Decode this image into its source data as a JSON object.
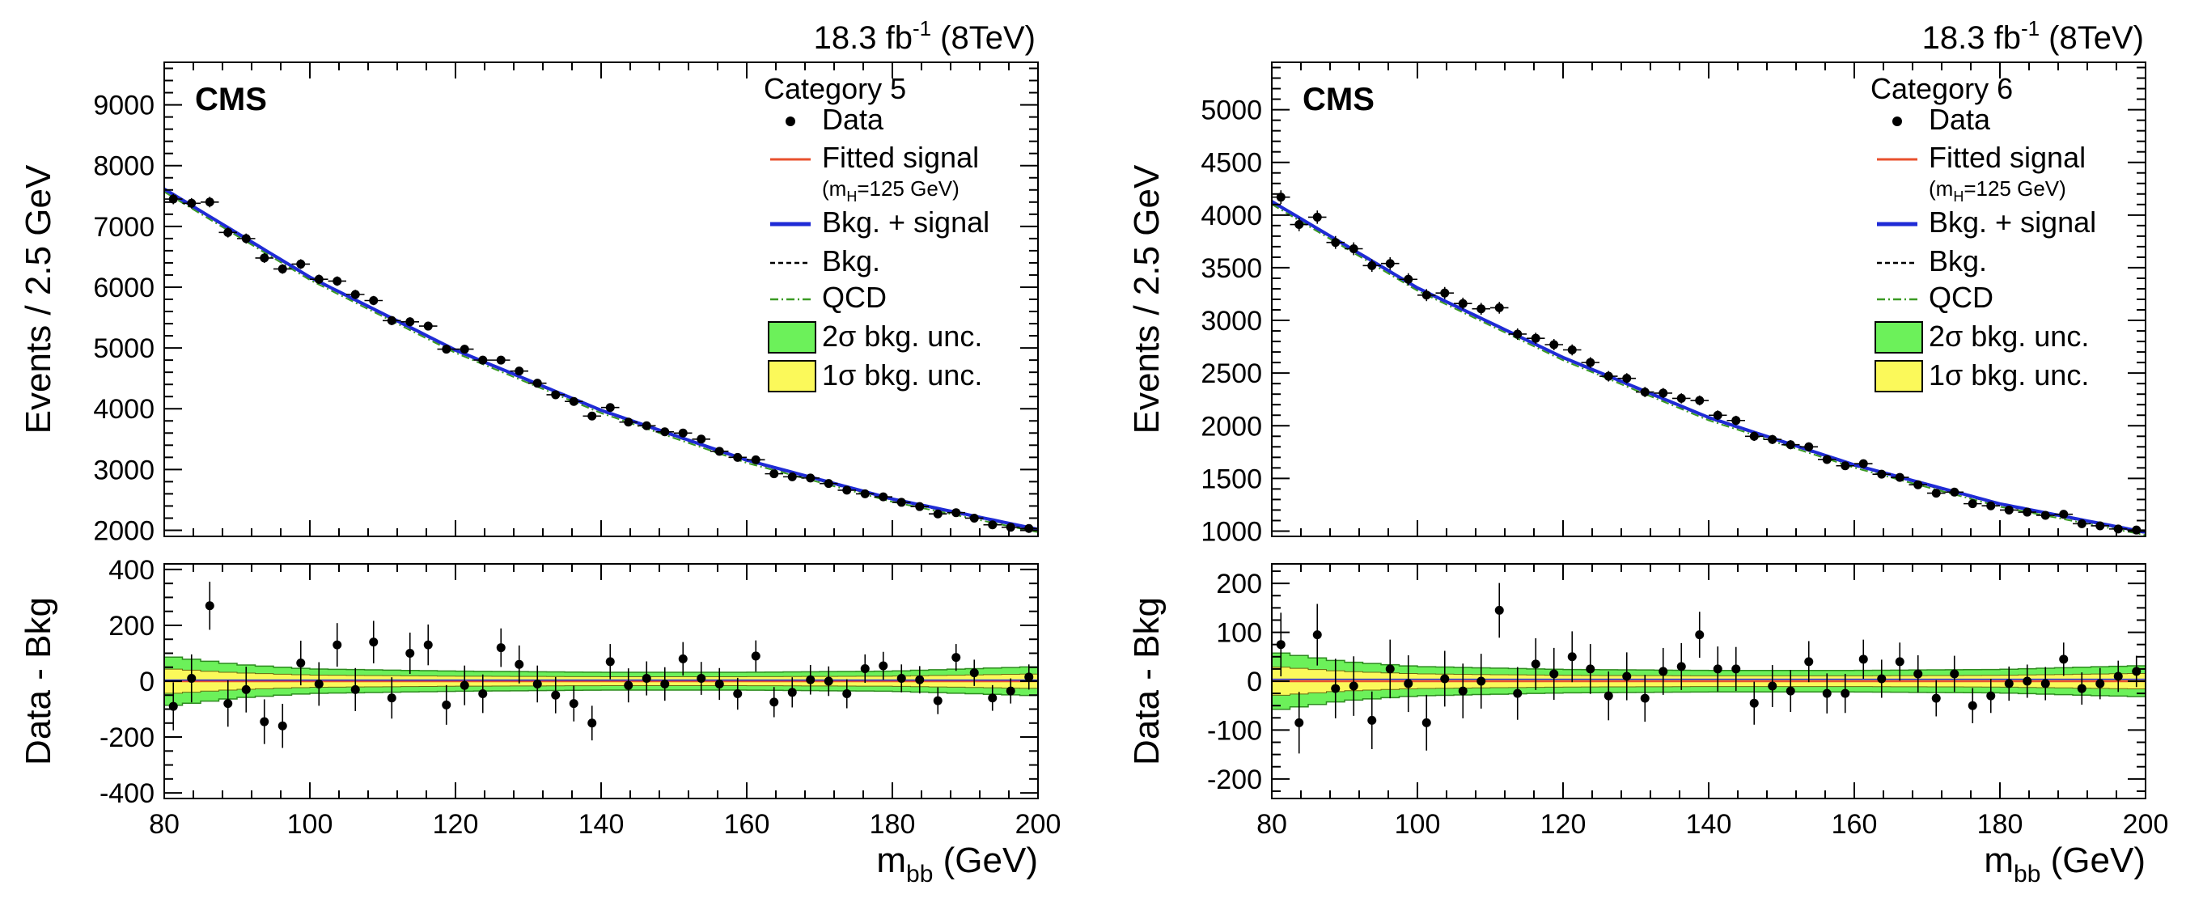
{
  "chart_data": [
    {
      "type": "scatter",
      "name": "category-5",
      "lumi_base": "18.3 fb",
      "lumi_sup": "-1",
      "lumi_energy": "(8TeV)",
      "experiment": "CMS",
      "category": "Category 5",
      "ylabel": "Events / 2.5 GeV",
      "ylabel_ratio": "Data - Bkg",
      "xlabel_base": "m",
      "xlabel_sub": "bb",
      "xlabel_unit": "(GeV)",
      "xlim": [
        80,
        200
      ],
      "ylim": [
        1900,
        9700
      ],
      "ylim_ratio": [
        -420,
        420
      ],
      "xticks": [
        80,
        100,
        120,
        140,
        160,
        180,
        200
      ],
      "yticks": [
        2000,
        3000,
        4000,
        5000,
        6000,
        7000,
        8000,
        9000
      ],
      "yticks_ratio": [
        -400,
        -200,
        0,
        200,
        400
      ],
      "fit_curve": {
        "x": [
          80,
          100,
          120,
          140,
          160,
          180,
          200
        ],
        "y": [
          7600,
          6150,
          4950,
          3960,
          3140,
          2500,
          2000
        ]
      },
      "band_ratio": {
        "x": [
          80,
          90,
          100,
          120,
          140,
          160,
          180,
          200
        ],
        "one_sigma": [
          45,
          30,
          22,
          18,
          16,
          16,
          18,
          26
        ],
        "two_sigma": [
          90,
          60,
          44,
          36,
          32,
          32,
          36,
          52
        ]
      },
      "data_points": {
        "x": [
          81.25,
          83.75,
          86.25,
          88.75,
          91.25,
          93.75,
          96.25,
          98.75,
          101.25,
          103.75,
          106.25,
          108.75,
          111.25,
          113.75,
          116.25,
          118.75,
          121.25,
          123.75,
          126.25,
          128.75,
          131.25,
          133.75,
          136.25,
          138.75,
          141.25,
          143.75,
          146.25,
          148.75,
          151.25,
          153.75,
          156.25,
          158.75,
          161.25,
          163.75,
          166.25,
          168.75,
          171.25,
          173.75,
          176.25,
          178.75,
          181.25,
          183.75,
          186.25,
          188.75,
          191.25,
          193.75,
          196.25,
          198.75
        ],
        "y": [
          7450,
          7380,
          7400,
          6900,
          6800,
          6480,
          6300,
          6380,
          6130,
          6100,
          5880,
          5780,
          5450,
          5430,
          5360,
          4980,
          4980,
          4800,
          4800,
          4620,
          4420,
          4230,
          4120,
          3880,
          4020,
          3780,
          3720,
          3620,
          3600,
          3500,
          3300,
          3200,
          3160,
          2930,
          2880,
          2860,
          2770,
          2660,
          2600,
          2550,
          2460,
          2390,
          2270,
          2290,
          2200,
          2090,
          2050,
          2030
        ],
        "residual": [
          -90,
          10,
          270,
          -80,
          -30,
          -145,
          -160,
          65,
          -10,
          130,
          -30,
          140,
          -60,
          100,
          130,
          -85,
          -15,
          -45,
          120,
          60,
          -10,
          -50,
          -80,
          -150,
          70,
          -15,
          10,
          -10,
          80,
          10,
          -10,
          -45,
          90,
          -75,
          -40,
          5,
          0,
          -45,
          45,
          55,
          10,
          5,
          -70,
          85,
          30,
          -60,
          -35,
          15
        ],
        "err": [
          86,
          86,
          86,
          83,
          82,
          80,
          79,
          80,
          78,
          78,
          77,
          76,
          74,
          74,
          73,
          71,
          71,
          69,
          69,
          68,
          66,
          65,
          64,
          62,
          63,
          61,
          61,
          60,
          60,
          59,
          57,
          57,
          56,
          54,
          54,
          53,
          53,
          52,
          51,
          50,
          50,
          49,
          48,
          48,
          47,
          46,
          45,
          45
        ]
      },
      "legend": [
        {
          "label": "Data",
          "kind": "marker"
        },
        {
          "label": "Fitted signal",
          "sub": "(m",
          "sub_h": "H",
          "sub_tail": "=125 GeV)",
          "kind": "line",
          "color": "#e8502e"
        },
        {
          "label": "Bkg. + signal",
          "kind": "line",
          "color": "#1f2bd6"
        },
        {
          "label": "Bkg.",
          "kind": "dashed",
          "color": "#000000"
        },
        {
          "label": "QCD",
          "kind": "dashdot",
          "color": "#3a9a23"
        },
        {
          "label": "2σ bkg. unc.",
          "kind": "box",
          "color": "#6cf15a"
        },
        {
          "label": "1σ bkg. unc.",
          "kind": "box",
          "color": "#fbf95a"
        }
      ]
    },
    {
      "type": "scatter",
      "name": "category-6",
      "lumi_base": "18.3 fb",
      "lumi_sup": "-1",
      "lumi_energy": "(8TeV)",
      "experiment": "CMS",
      "category": "Category 6",
      "ylabel": "Events / 2.5 GeV",
      "ylabel_ratio": "Data - Bkg",
      "xlabel_base": "m",
      "xlabel_sub": "bb",
      "xlabel_unit": "(GeV)",
      "xlim": [
        80,
        200
      ],
      "ylim": [
        950,
        5450
      ],
      "ylim_ratio": [
        -240,
        240
      ],
      "xticks": [
        80,
        100,
        120,
        140,
        160,
        180,
        200
      ],
      "yticks": [
        1000,
        1500,
        2000,
        2500,
        3000,
        3500,
        4000,
        4500,
        5000
      ],
      "yticks_ratio": [
        -200,
        -100,
        0,
        100,
        200
      ],
      "fit_curve": {
        "x": [
          80,
          100,
          120,
          140,
          160,
          180,
          200
        ],
        "y": [
          4120,
          3300,
          2640,
          2070,
          1620,
          1250,
          980
        ]
      },
      "band_ratio": {
        "x": [
          80,
          90,
          100,
          120,
          140,
          160,
          180,
          200
        ],
        "one_sigma": [
          30,
          20,
          15,
          12,
          11,
          11,
          12,
          16
        ],
        "two_sigma": [
          60,
          40,
          30,
          24,
          22,
          22,
          24,
          32
        ]
      },
      "data_points": {
        "x": [
          81.25,
          83.75,
          86.25,
          88.75,
          91.25,
          93.75,
          96.25,
          98.75,
          101.25,
          103.75,
          106.25,
          108.75,
          111.25,
          113.75,
          116.25,
          118.75,
          121.25,
          123.75,
          126.25,
          128.75,
          131.25,
          133.75,
          136.25,
          138.75,
          141.25,
          143.75,
          146.25,
          148.75,
          151.25,
          153.75,
          156.25,
          158.75,
          161.25,
          163.75,
          166.25,
          168.75,
          171.25,
          173.75,
          176.25,
          178.75,
          181.25,
          183.75,
          186.25,
          188.75,
          191.25,
          193.75,
          196.25,
          198.75
        ],
        "y": [
          4170,
          3910,
          3980,
          3740,
          3680,
          3520,
          3540,
          3390,
          3240,
          3260,
          3160,
          3110,
          3120,
          2870,
          2830,
          2770,
          2720,
          2600,
          2470,
          2450,
          2320,
          2310,
          2260,
          2240,
          2100,
          2050,
          1900,
          1870,
          1820,
          1800,
          1680,
          1620,
          1640,
          1540,
          1510,
          1440,
          1360,
          1370,
          1260,
          1240,
          1200,
          1180,
          1150,
          1160,
          1070,
          1050,
          1020,
          1010
        ],
        "residual": [
          75,
          -85,
          95,
          -15,
          -10,
          -80,
          25,
          -5,
          -85,
          5,
          -20,
          0,
          145,
          -25,
          35,
          15,
          50,
          25,
          -30,
          10,
          -35,
          20,
          30,
          95,
          25,
          25,
          -45,
          -10,
          -20,
          40,
          -25,
          -25,
          45,
          5,
          40,
          15,
          -35,
          15,
          -50,
          -30,
          -5,
          0,
          -5,
          45,
          -15,
          -5,
          10,
          20
        ],
        "err": [
          65,
          63,
          63,
          61,
          61,
          59,
          60,
          58,
          57,
          57,
          56,
          56,
          56,
          54,
          53,
          53,
          52,
          51,
          50,
          49,
          48,
          48,
          48,
          47,
          46,
          45,
          44,
          43,
          43,
          42,
          41,
          40,
          40,
          39,
          39,
          38,
          37,
          37,
          36,
          35,
          35,
          34,
          34,
          34,
          33,
          32,
          32,
          32
        ]
      },
      "legend": [
        {
          "label": "Data",
          "kind": "marker"
        },
        {
          "label": "Fitted signal",
          "sub": "(m",
          "sub_h": "H",
          "sub_tail": "=125 GeV)",
          "kind": "line",
          "color": "#e8502e"
        },
        {
          "label": "Bkg. + signal",
          "kind": "line",
          "color": "#1f2bd6"
        },
        {
          "label": "Bkg.",
          "kind": "dashed",
          "color": "#000000"
        },
        {
          "label": "QCD",
          "kind": "dashdot",
          "color": "#3a9a23"
        },
        {
          "label": "2σ bkg. unc.",
          "kind": "box",
          "color": "#6cf15a"
        },
        {
          "label": "1σ bkg. unc.",
          "kind": "box",
          "color": "#fbf95a"
        }
      ]
    }
  ]
}
